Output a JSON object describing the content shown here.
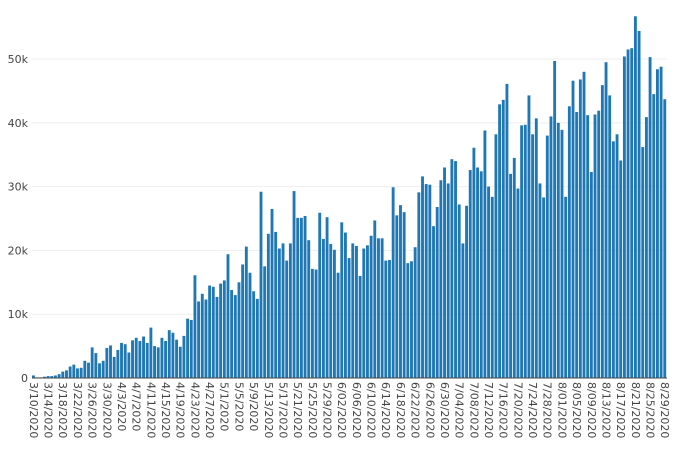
{
  "chart_data": {
    "type": "bar",
    "title": "",
    "xlabel": "",
    "ylabel": "",
    "grid": "horizontal",
    "legend": "none",
    "bar_color": "#1f77b4",
    "bar_edge_color": "#ffffff",
    "ylim": [
      0,
      58000
    ],
    "y_ticks": [
      0,
      10000,
      20000,
      30000,
      40000,
      50000
    ],
    "y_tick_labels": [
      "0",
      "10k",
      "20k",
      "30k",
      "40k",
      "50k"
    ],
    "x_tick_labels": [
      "3/10/2020",
      "3/14/2020",
      "3/18/2020",
      "3/22/2020",
      "3/26/2020",
      "3/30/2020",
      "4/3/2020",
      "4/7/2020",
      "4/11/2020",
      "4/15/2020",
      "4/19/2020",
      "4/23/2020",
      "4/27/2020",
      "5/1/2020",
      "5/5/2020",
      "5/9/2020",
      "5/13/2020",
      "5/17/2020",
      "5/21/2020",
      "5/25/2020",
      "5/29/2020",
      "6/02/2020",
      "6/06/2020",
      "6/10/2020",
      "6/14/2020",
      "6/18/2020",
      "6/22/2020",
      "6/26/2020",
      "6/30/2020",
      "7/04/2020",
      "7/08/2020",
      "7/12/2020",
      "7/16/2020",
      "7/20/2020",
      "7/24/2020",
      "7/28/2020",
      "8/01/2020",
      "8/05/2020",
      "8/09/2020",
      "8/13/2020",
      "8/17/2020",
      "8/21/2020",
      "8/25/2020",
      "8/29/2020"
    ],
    "tick_every": 4,
    "values": [
      400,
      100,
      100,
      200,
      300,
      300,
      400,
      600,
      1000,
      1200,
      1800,
      2100,
      1500,
      1600,
      2700,
      2400,
      4800,
      3900,
      2300,
      2700,
      4700,
      5100,
      3300,
      4400,
      5500,
      5300,
      4000,
      5900,
      6300,
      5800,
      6500,
      5500,
      7900,
      5000,
      4800,
      6300,
      5800,
      7500,
      7100,
      6000,
      4900,
      6600,
      9300,
      9100,
      16100,
      12000,
      13200,
      12300,
      14500,
      14300,
      12700,
      14800,
      15300,
      19400,
      13800,
      13000,
      15000,
      17800,
      20600,
      16500,
      13600,
      12400,
      29200,
      17500,
      22600,
      26500,
      22900,
      20300,
      21100,
      18400,
      21100,
      29300,
      25100,
      25100,
      25400,
      21600,
      17100,
      17000,
      25900,
      21800,
      25200,
      21000,
      20100,
      16500,
      24400,
      22800,
      18800,
      21100,
      20700,
      16000,
      20300,
      20800,
      22300,
      24700,
      21900,
      21900,
      18400,
      18500,
      29900,
      25500,
      27100,
      26000,
      18000,
      18300,
      20500,
      29100,
      31600,
      30400,
      30300,
      23800,
      26800,
      31000,
      33000,
      30500,
      34300,
      34000,
      27200,
      21100,
      27000,
      32600,
      36100,
      33000,
      32400,
      38800,
      30000,
      28400,
      38200,
      42900,
      43600,
      46100,
      32000,
      34500,
      29700,
      39600,
      39700,
      44300,
      38200,
      40700,
      30500,
      28300,
      38000,
      41000,
      49700,
      40000,
      38900,
      28400,
      42600,
      46600,
      41700,
      46800,
      48000,
      41200,
      32300,
      41300,
      41900,
      45900,
      49500,
      44300,
      37100,
      38200,
      34100,
      50400,
      51500,
      51700,
      56700,
      54400,
      36200,
      40900,
      50300,
      44500,
      48400,
      48800,
      43700
    ]
  }
}
